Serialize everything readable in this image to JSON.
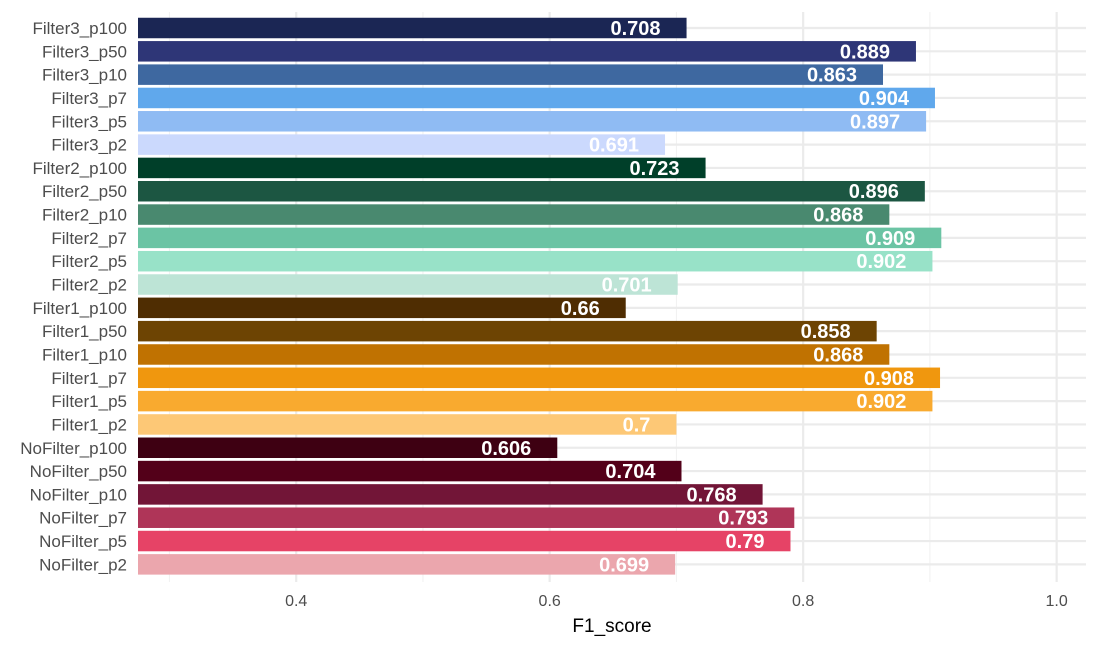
{
  "chart_data": {
    "type": "bar",
    "orientation": "horizontal",
    "title": "",
    "xlabel": "F1_score",
    "ylabel": "",
    "xlim": [
      0.27,
      1.03
    ],
    "x_ticks": [
      0.4,
      0.6,
      0.8,
      1.0
    ],
    "x_tick_labels": [
      "0.4",
      "0.6",
      "0.8",
      "1.0"
    ],
    "grid": true,
    "legend": "none",
    "categories": [
      "Filter3_p100",
      "Filter3_p50",
      "Filter3_p10",
      "Filter3_p7",
      "Filter3_p5",
      "Filter3_p2",
      "Filter2_p100",
      "Filter2_p50",
      "Filter2_p10",
      "Filter2_p7",
      "Filter2_p5",
      "Filter2_p2",
      "Filter1_p100",
      "Filter1_p50",
      "Filter1_p10",
      "Filter1_p7",
      "Filter1_p5",
      "Filter1_p2",
      "NoFilter_p100",
      "NoFilter_p50",
      "NoFilter_p10",
      "NoFilter_p7",
      "NoFilter_p5",
      "NoFilter_p2"
    ],
    "values": [
      0.708,
      0.889,
      0.863,
      0.904,
      0.897,
      0.691,
      0.723,
      0.896,
      0.868,
      0.909,
      0.902,
      0.701,
      0.66,
      0.858,
      0.868,
      0.908,
      0.902,
      0.7,
      0.606,
      0.704,
      0.768,
      0.793,
      0.79,
      0.699
    ],
    "value_labels": [
      "0.708",
      "0.889",
      "0.863",
      "0.904",
      "0.897",
      "0.691",
      "0.723",
      "0.896",
      "0.868",
      "0.909",
      "0.902",
      "0.701",
      "0.66",
      "0.858",
      "0.868",
      "0.908",
      "0.902",
      "0.7",
      "0.606",
      "0.704",
      "0.768",
      "0.793",
      "0.79",
      "0.699"
    ],
    "colors": [
      "#1b2654",
      "#2e3677",
      "#3e68a0",
      "#60a8ec",
      "#8fbbf3",
      "#cbd9fd",
      "#003f29",
      "#1c5642",
      "#49896f",
      "#6bc4a4",
      "#98e2c8",
      "#bde4d6",
      "#4f2d02",
      "#6d4403",
      "#c07201",
      "#f0970e",
      "#f9aa2f",
      "#fdc876",
      "#3e0012",
      "#530019",
      "#721537",
      "#af3558",
      "#e64366",
      "#eba6ad"
    ]
  }
}
